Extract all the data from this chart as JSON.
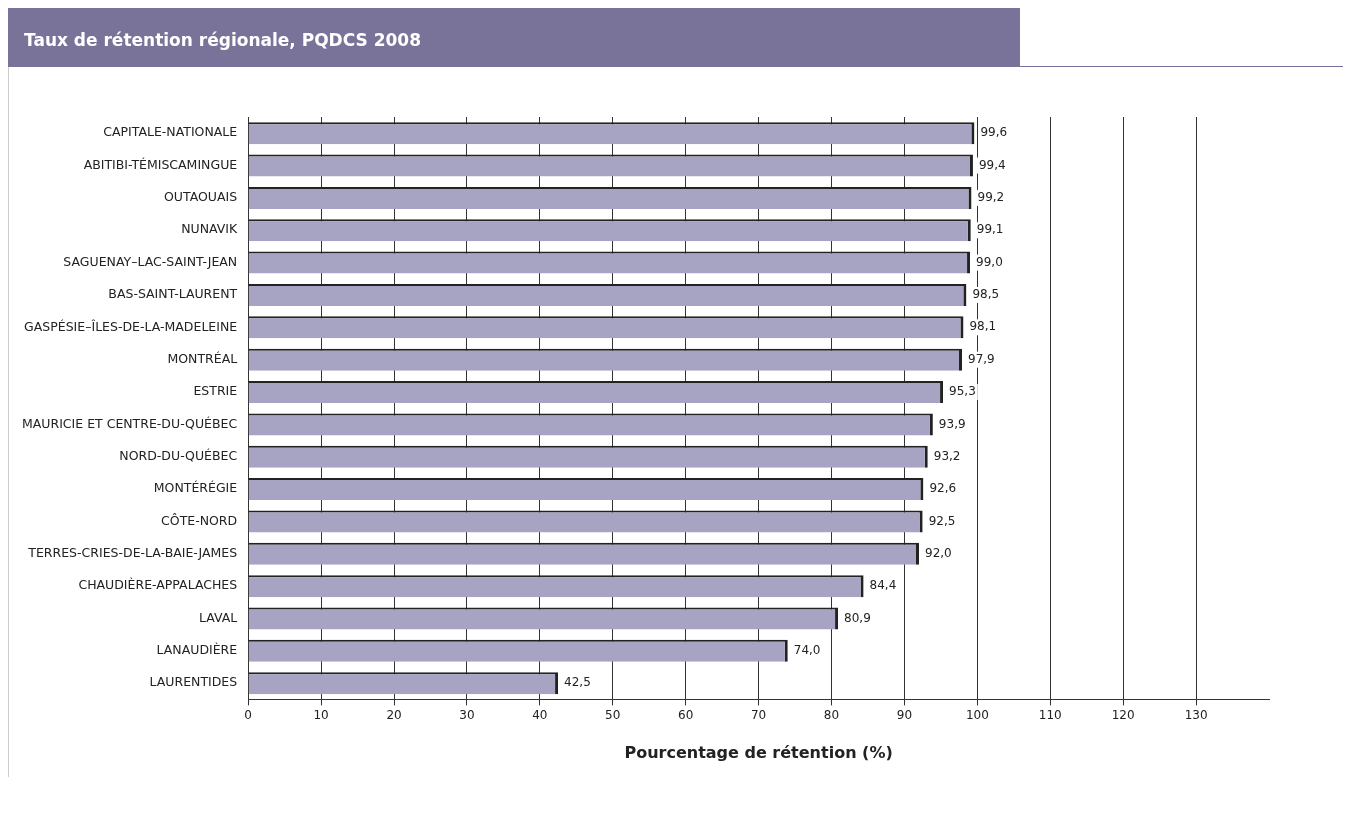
{
  "chart_data": {
    "type": "bar",
    "orientation": "horizontal",
    "title": "Taux de rétention régionale, PQDCS 2008",
    "xlabel": "Pourcentage de rétention (%)",
    "categories": [
      "CAPITALE-NATIONALE",
      "ABITIBI-TÉMISCAMINGUE",
      "OUTAOUAIS",
      "NUNAVIK",
      "SAGUENAY–LAC-SAINT-JEAN",
      "BAS-SAINT-LAURENT",
      "GASPÉSIE–ÎLES-DE-LA-MADELEINE",
      "MONTRÉAL",
      "ESTRIE",
      "MAURICIE ET CENTRE-DU-QUÉBEC",
      "NORD-DU-QUÉBEC",
      "MONTÉRÉGIE",
      "CÔTE-NORD",
      "TERRES-CRIES-DE-LA-BAIE-JAMES",
      "CHAUDIÈRE-APPALACHES",
      "LAVAL",
      "LANAUDIÈRE",
      "LAURENTIDES"
    ],
    "values": [
      99.6,
      99.4,
      99.2,
      99.1,
      99.0,
      98.5,
      98.1,
      97.9,
      95.3,
      93.9,
      93.2,
      92.6,
      92.5,
      92.0,
      84.4,
      80.9,
      74.0,
      42.5
    ],
    "value_labels": [
      "99,6",
      "99,4",
      "99,2",
      "99,1",
      "99,0",
      "98,5",
      "98,1",
      "97,9",
      "95,3",
      "93,9",
      "93,2",
      "92,6",
      "92,5",
      "92,0",
      "84,4",
      "80,9",
      "74,0",
      "42,5"
    ],
    "color": "#a7a3c2",
    "xlim": [
      0,
      140
    ],
    "xticks": [
      0,
      10,
      20,
      30,
      40,
      50,
      60,
      70,
      80,
      90,
      100,
      110,
      120,
      130
    ],
    "grid": "x",
    "legend": false
  }
}
